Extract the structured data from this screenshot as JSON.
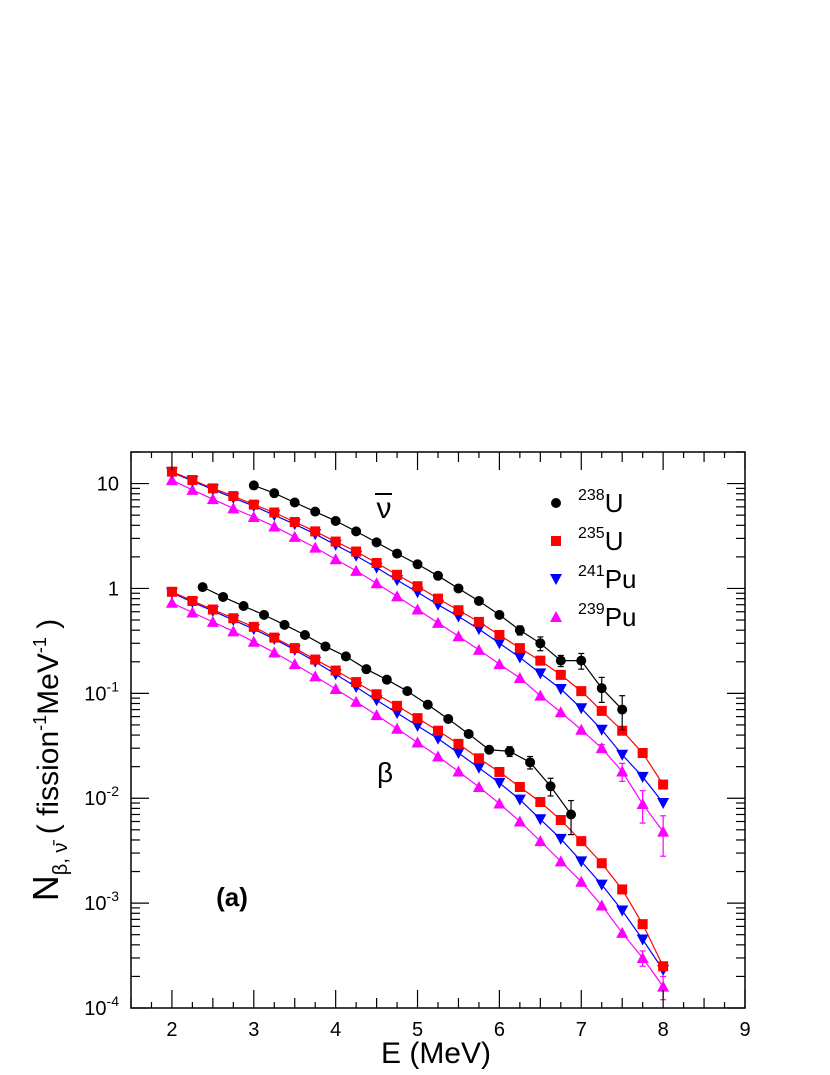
{
  "chart_data": {
    "type": "scatter",
    "xlabel": "E (MeV)",
    "ylabel": {
      "main": "N",
      "sub": "β, ν̄",
      "unit_open": " ( fission",
      "unit_mid": "MeV",
      "unit_close": " )",
      "exp": "-1"
    },
    "xlim": [
      1.5,
      9
    ],
    "ylim": [
      0.0001,
      20
    ],
    "yscale": "log",
    "grid": false,
    "legend_position": "top-right",
    "x_ticks": [
      "2",
      "3",
      "4",
      "5",
      "6",
      "7",
      "8",
      "9"
    ],
    "y_ticks": [
      {
        "base": "10",
        "exp": "-4",
        "value": 0.0001
      },
      {
        "base": "10",
        "exp": "-3",
        "value": 0.001
      },
      {
        "base": "10",
        "exp": "-2",
        "value": 0.01
      },
      {
        "base": "10",
        "exp": "-1",
        "value": 0.1
      },
      {
        "base": "1",
        "exp": "",
        "value": 1
      },
      {
        "base": "10",
        "exp": "",
        "value": 10
      }
    ],
    "annotations": {
      "panel": "(a)",
      "nu": "ν",
      "beta": "β"
    },
    "series": [
      {
        "name": "U",
        "mass": "238",
        "color": "#000000",
        "marker": "circle",
        "nu": {
          "x": [
            3.0,
            3.25,
            3.5,
            3.75,
            4.0,
            4.25,
            4.5,
            4.75,
            5.0,
            5.25,
            5.5,
            5.75,
            6.0,
            6.25,
            6.5,
            6.75,
            7.0,
            7.25,
            7.5
          ],
          "y": [
            9.6,
            8.1,
            6.6,
            5.4,
            4.4,
            3.5,
            2.75,
            2.15,
            1.7,
            1.32,
            1.0,
            0.76,
            0.56,
            0.4,
            0.3,
            0.205,
            0.205,
            0.112,
            0.07
          ],
          "err": [
            0,
            0,
            0,
            0,
            0,
            0,
            0,
            0,
            0,
            0,
            0,
            0,
            0,
            0.04,
            0.045,
            0.025,
            0.035,
            0.03,
            0.025
          ]
        },
        "beta": {
          "x": [
            2.375,
            2.625,
            2.875,
            3.125,
            3.375,
            3.625,
            3.875,
            4.125,
            4.375,
            4.625,
            4.875,
            5.125,
            5.375,
            5.625,
            5.875,
            6.125,
            6.375,
            6.625,
            6.875
          ],
          "y": [
            1.03,
            0.83,
            0.68,
            0.56,
            0.45,
            0.36,
            0.28,
            0.225,
            0.17,
            0.135,
            0.105,
            0.078,
            0.057,
            0.041,
            0.029,
            0.028,
            0.022,
            0.013,
            0.007
          ],
          "err": [
            0,
            0,
            0,
            0,
            0,
            0,
            0,
            0,
            0,
            0,
            0,
            0,
            0,
            0,
            0.002,
            0.003,
            0.003,
            0.0025,
            0.0025
          ]
        }
      },
      {
        "name": "U",
        "mass": "235",
        "color": "#ff0000",
        "marker": "square",
        "nu": {
          "x": [
            2.0,
            2.25,
            2.5,
            2.75,
            3.0,
            3.25,
            3.5,
            3.75,
            4.0,
            4.25,
            4.5,
            4.75,
            5.0,
            5.25,
            5.5,
            5.75,
            6.0,
            6.25,
            6.5,
            6.75,
            7.0,
            7.25,
            7.5,
            7.75,
            8.0
          ],
          "y": [
            13.0,
            10.8,
            9.0,
            7.6,
            6.3,
            5.3,
            4.3,
            3.5,
            2.8,
            2.25,
            1.75,
            1.35,
            1.05,
            0.8,
            0.62,
            0.48,
            0.36,
            0.27,
            0.205,
            0.15,
            0.105,
            0.068,
            0.044,
            0.027,
            0.0135
          ],
          "err": [
            0,
            0,
            0,
            0,
            0,
            0,
            0,
            0,
            0,
            0,
            0,
            0,
            0,
            0,
            0,
            0,
            0,
            0,
            0,
            0,
            0,
            0,
            0,
            0,
            0
          ]
        },
        "beta": {
          "x": [
            2.0,
            2.25,
            2.5,
            2.75,
            3.0,
            3.25,
            3.5,
            3.75,
            4.0,
            4.25,
            4.5,
            4.75,
            5.0,
            5.25,
            5.5,
            5.75,
            6.0,
            6.25,
            6.5,
            6.75,
            7.0,
            7.25,
            7.5,
            7.75,
            8.0
          ],
          "y": [
            0.93,
            0.76,
            0.63,
            0.52,
            0.43,
            0.34,
            0.27,
            0.21,
            0.165,
            0.128,
            0.098,
            0.076,
            0.058,
            0.044,
            0.033,
            0.024,
            0.0178,
            0.0128,
            0.0092,
            0.0062,
            0.0039,
            0.0024,
            0.00135,
            0.00063,
            0.00025
          ],
          "err": [
            0,
            0,
            0,
            0,
            0,
            0,
            0,
            0,
            0,
            0,
            0,
            0,
            0,
            0,
            0,
            0,
            0,
            0,
            0,
            0,
            0,
            0,
            0,
            0,
            0
          ]
        }
      },
      {
        "name": "Pu",
        "mass": "241",
        "color": "#0000ff",
        "marker": "triangle-down",
        "nu": {
          "x": [
            2.0,
            2.25,
            2.5,
            2.75,
            3.0,
            3.25,
            3.5,
            3.75,
            4.0,
            4.25,
            4.5,
            4.75,
            5.0,
            5.25,
            5.5,
            5.75,
            6.0,
            6.25,
            6.5,
            6.75,
            7.0,
            7.25,
            7.5,
            7.75,
            8.0
          ],
          "y": [
            12.8,
            10.6,
            8.8,
            7.3,
            6.1,
            5.0,
            4.1,
            3.3,
            2.6,
            2.05,
            1.58,
            1.2,
            0.92,
            0.7,
            0.54,
            0.41,
            0.3,
            0.22,
            0.155,
            0.11,
            0.072,
            0.045,
            0.026,
            0.016,
            0.009
          ],
          "err": [
            0,
            0,
            0,
            0,
            0,
            0,
            0,
            0,
            0,
            0,
            0,
            0,
            0,
            0,
            0,
            0,
            0,
            0,
            0,
            0,
            0,
            0,
            0,
            0,
            0
          ]
        },
        "beta": {
          "x": [
            2.0,
            2.25,
            2.5,
            2.75,
            3.0,
            3.25,
            3.5,
            3.75,
            4.0,
            4.25,
            4.5,
            4.75,
            5.0,
            5.25,
            5.5,
            5.75,
            6.0,
            6.25,
            6.5,
            6.75,
            7.0,
            7.25,
            7.5,
            7.75,
            8.0
          ],
          "y": [
            0.91,
            0.74,
            0.61,
            0.5,
            0.41,
            0.33,
            0.26,
            0.2,
            0.152,
            0.115,
            0.086,
            0.065,
            0.049,
            0.037,
            0.027,
            0.0195,
            0.014,
            0.0097,
            0.0063,
            0.0041,
            0.0025,
            0.0015,
            0.00085,
            0.00045,
            0.00023
          ],
          "err": [
            0,
            0,
            0,
            0,
            0,
            0,
            0,
            0,
            0,
            0,
            0,
            0,
            0,
            0,
            0,
            0,
            0,
            0,
            0,
            0,
            0,
            0,
            0,
            0,
            0
          ]
        }
      },
      {
        "name": "Pu",
        "mass": "239",
        "color": "#ff00ff",
        "marker": "triangle-up",
        "nu": {
          "x": [
            2.0,
            2.25,
            2.5,
            2.75,
            3.0,
            3.25,
            3.5,
            3.75,
            4.0,
            4.25,
            4.5,
            4.75,
            5.0,
            5.25,
            5.5,
            5.75,
            6.0,
            6.25,
            6.5,
            6.75,
            7.0,
            7.25,
            7.5,
            7.75,
            8.0
          ],
          "y": [
            10.8,
            8.7,
            7.1,
            5.8,
            4.8,
            3.9,
            3.1,
            2.45,
            1.9,
            1.47,
            1.12,
            0.84,
            0.63,
            0.47,
            0.35,
            0.26,
            0.19,
            0.14,
            0.095,
            0.066,
            0.045,
            0.03,
            0.018,
            0.0088,
            0.0048
          ],
          "err": [
            0,
            0,
            0,
            0,
            0,
            0,
            0,
            0,
            0,
            0,
            0,
            0,
            0,
            0,
            0,
            0,
            0,
            0,
            0,
            0,
            0,
            0.0025,
            0.0035,
            0.003,
            0.002
          ]
        },
        "beta": {
          "x": [
            2.0,
            2.25,
            2.5,
            2.75,
            3.0,
            3.25,
            3.5,
            3.75,
            4.0,
            4.25,
            4.5,
            4.75,
            5.0,
            5.25,
            5.5,
            5.75,
            6.0,
            6.25,
            6.5,
            6.75,
            7.0,
            7.25,
            7.5,
            7.75,
            8.0
          ],
          "y": [
            0.73,
            0.59,
            0.48,
            0.39,
            0.31,
            0.245,
            0.19,
            0.145,
            0.11,
            0.083,
            0.062,
            0.046,
            0.034,
            0.025,
            0.018,
            0.0128,
            0.0089,
            0.006,
            0.0039,
            0.0025,
            0.0016,
            0.00095,
            0.00052,
            0.0003,
            0.00016
          ],
          "err": [
            0,
            0,
            0,
            0,
            0,
            0,
            0,
            0,
            0,
            0,
            0,
            0,
            0,
            0,
            0,
            0,
            0,
            0,
            0,
            0,
            0,
            0,
            0,
            5e-05,
            4e-05
          ]
        }
      }
    ]
  }
}
